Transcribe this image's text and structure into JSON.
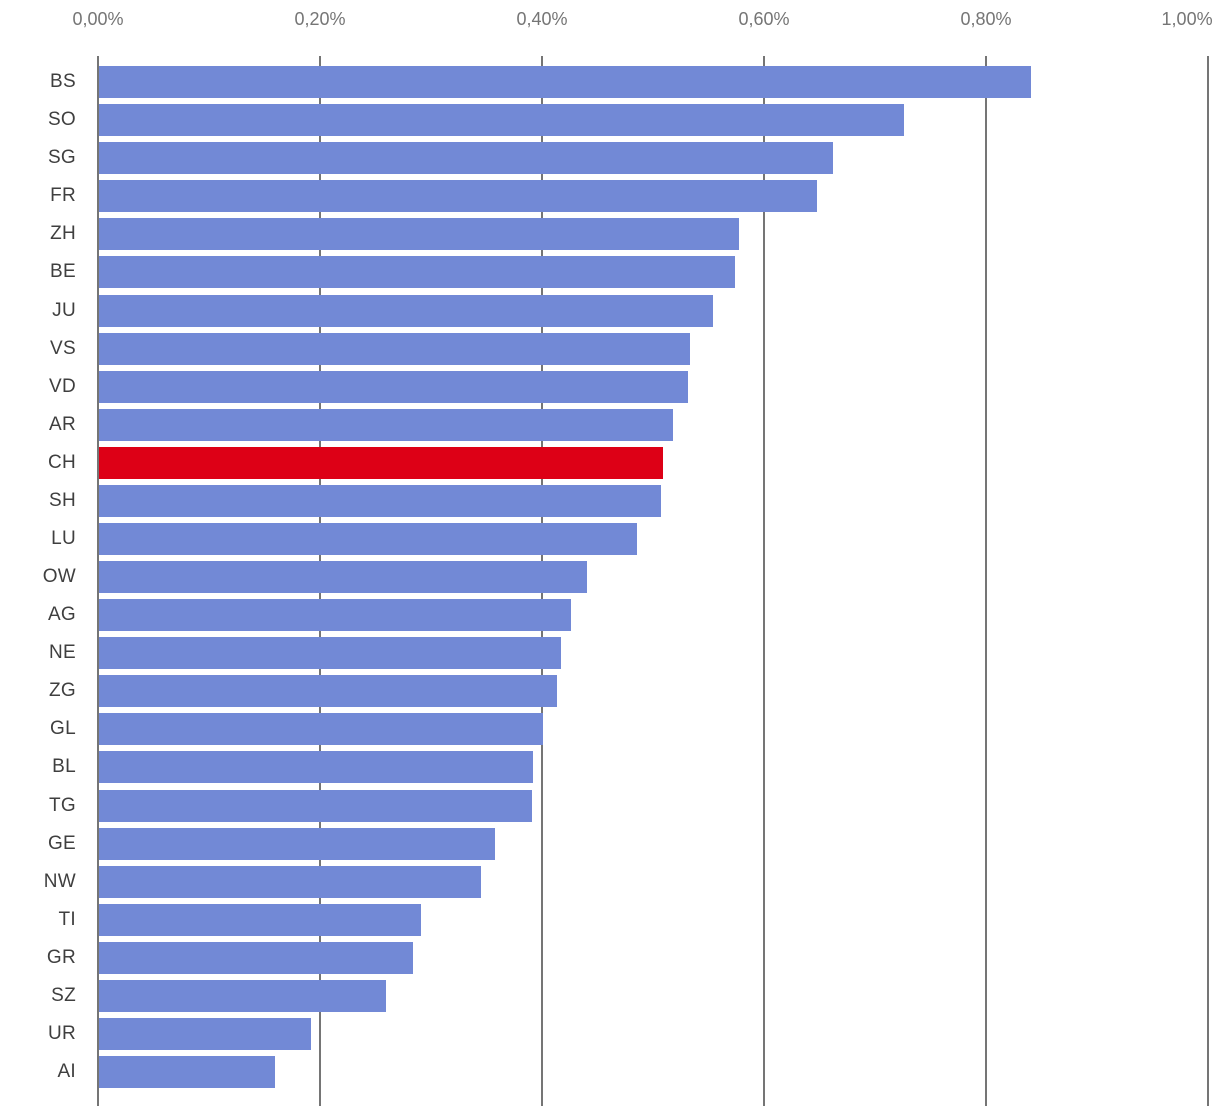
{
  "chart_data": {
    "type": "bar",
    "orientation": "horizontal",
    "title": "",
    "xlabel": "",
    "ylabel": "",
    "categories": [
      "BS",
      "SO",
      "SG",
      "FR",
      "ZH",
      "BE",
      "JU",
      "VS",
      "VD",
      "AR",
      "CH",
      "SH",
      "LU",
      "OW",
      "AG",
      "NE",
      "ZG",
      "GL",
      "BL",
      "TG",
      "GE",
      "NW",
      "TI",
      "GR",
      "SZ",
      "UR",
      "AI"
    ],
    "values": [
      0.84,
      0.725,
      0.661,
      0.647,
      0.577,
      0.573,
      0.553,
      0.532,
      0.531,
      0.517,
      0.508,
      0.506,
      0.485,
      0.44,
      0.425,
      0.416,
      0.413,
      0.4,
      0.391,
      0.39,
      0.357,
      0.344,
      0.29,
      0.283,
      0.259,
      0.191,
      0.159
    ],
    "value_unit": "%",
    "highlight_category": "CH",
    "x_ticks": [
      "0,00%",
      "0,20%",
      "0,40%",
      "0,60%",
      "0,80%",
      "1,00%"
    ],
    "xlim": [
      0,
      1.0
    ],
    "grid": "vertical",
    "legend_position": "none",
    "colors": {
      "bar": "#7289D6",
      "highlight": "#DD0016",
      "gridline": "#757575",
      "tick_text": "#757575",
      "category_text": "#3F3F3F",
      "background": "#FFFFFF"
    }
  }
}
